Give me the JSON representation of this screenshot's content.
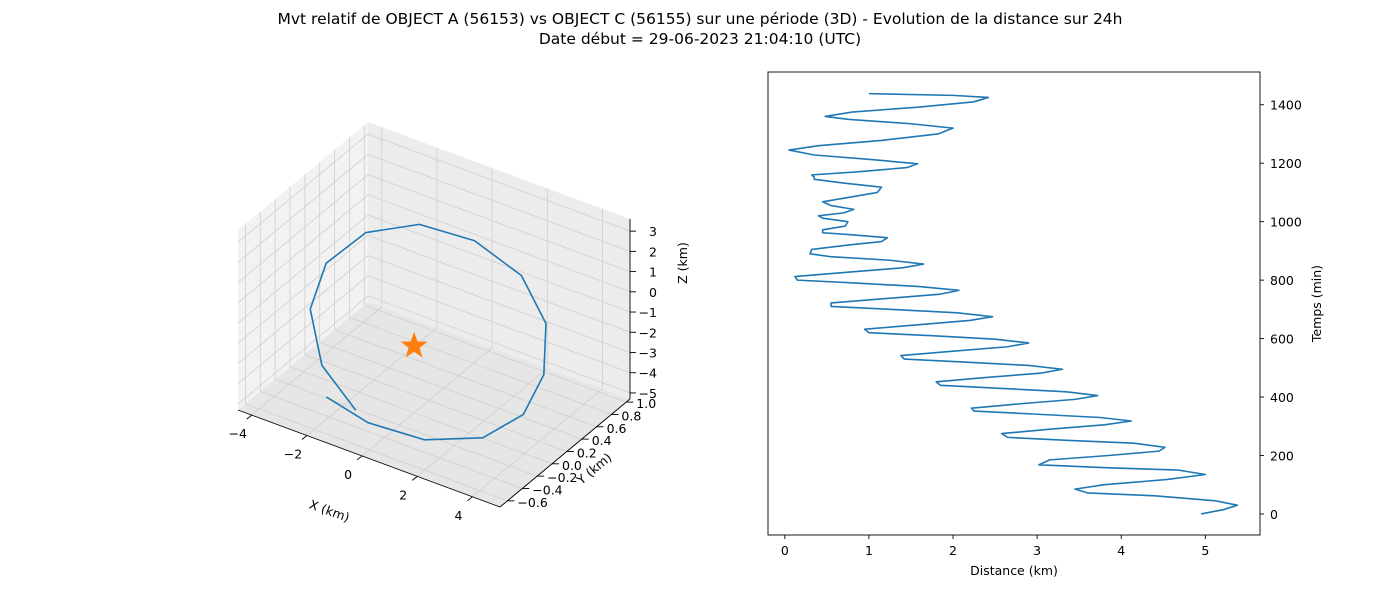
{
  "figure": {
    "title_line1": "Mvt relatif de OBJECT A (56153) vs OBJECT C (56155) sur une période (3D) - Evolution de la distance sur 24h",
    "title_line2": "Date début = 29-06-2023 21:04:10 (UTC)"
  },
  "chart_data": [
    {
      "type": "line",
      "projection": "3d",
      "xlabel": "X (km)",
      "ylabel": "Y (km)",
      "zlabel": "Z (km)",
      "xticks": [
        "−4",
        "−2",
        "0",
        "2",
        "4"
      ],
      "yticks": [
        "−0.6",
        "−0.4",
        "−0.2",
        "0.0",
        "0.2",
        "0.4",
        "0.6",
        "0.8",
        "1.0"
      ],
      "zticks": [
        "−5",
        "−4",
        "−3",
        "−2",
        "−1",
        "0",
        "1",
        "2",
        "3"
      ],
      "xlim": [
        -4.5,
        5.0
      ],
      "ylim": [
        -0.7,
        1.05
      ],
      "zlim": [
        -5.3,
        3.6
      ],
      "grid": true,
      "series": [
        {
          "color": "#1f77b4",
          "points": [
            [
              -0.5,
              -0.6,
              -3.6
            ],
            [
              -2.4,
              -0.35,
              -3.1
            ],
            [
              -3.9,
              0.05,
              -2.3
            ],
            [
              -4.4,
              0.45,
              -1.5
            ],
            [
              -3.9,
              0.8,
              -0.8
            ],
            [
              -2.5,
              1.0,
              -0.3
            ],
            [
              -0.5,
              1.0,
              -0.1
            ],
            [
              1.6,
              0.85,
              -0.3
            ],
            [
              3.3,
              0.55,
              -0.9
            ],
            [
              4.3,
              0.15,
              -1.7
            ],
            [
              4.5,
              -0.2,
              -2.5
            ],
            [
              3.7,
              -0.45,
              -3.3
            ],
            [
              2.0,
              -0.6,
              -3.8
            ],
            [
              0.0,
              -0.62,
              -3.9
            ],
            [
              -1.7,
              -0.55,
              -3.7
            ]
          ]
        },
        {
          "marker": "star",
          "color": "#ff7f0e",
          "points": [
            [
              0.0,
              0.0,
              -2.0
            ]
          ]
        }
      ]
    },
    {
      "type": "line",
      "xlabel": "Distance (km)",
      "ylabel": "Temps (min)",
      "xticks": [
        "0",
        "1",
        "2",
        "3",
        "4",
        "5"
      ],
      "yticks": [
        "0",
        "200",
        "400",
        "600",
        "800",
        "1000",
        "1200",
        "1400"
      ],
      "xlim": [
        -0.2,
        5.65
      ],
      "ylim": [
        -72,
        1512
      ],
      "series": [
        {
          "color": "#1f77b4",
          "x": [
            4.95,
            5.22,
            5.38,
            5.12,
            4.4,
            3.6,
            3.45,
            3.8,
            4.55,
            5.0,
            4.68,
            3.85,
            3.02,
            3.15,
            3.85,
            4.45,
            4.52,
            4.15,
            3.35,
            2.65,
            2.58,
            3.15,
            3.8,
            4.12,
            3.75,
            2.95,
            2.25,
            2.22,
            2.8,
            3.45,
            3.72,
            3.35,
            2.55,
            1.85,
            1.8,
            2.4,
            3.05,
            3.3,
            2.9,
            2.1,
            1.42,
            1.38,
            2.0,
            2.65,
            2.9,
            2.5,
            1.75,
            1.0,
            0.95,
            1.58,
            2.2,
            2.47,
            2.05,
            1.25,
            0.55,
            0.55,
            1.2,
            1.85,
            2.07,
            1.6,
            0.85,
            0.15,
            0.12,
            0.75,
            1.4,
            1.65,
            1.25,
            0.55,
            0.3,
            0.32,
            0.75,
            1.15,
            1.22,
            0.8,
            0.45,
            0.45,
            0.72,
            0.75,
            0.45,
            0.4,
            0.7,
            0.82,
            0.55,
            0.45,
            0.8,
            1.1,
            1.15,
            0.7,
            0.35,
            0.35,
            0.32,
            0.85,
            1.45,
            1.58,
            1.05,
            0.35,
            0.05,
            0.4,
            1.15,
            1.82,
            2.0,
            1.5,
            0.75,
            0.48,
            0.8,
            1.6,
            2.25,
            2.42,
            2.0,
            1.0
          ],
          "y": [
            0,
            15,
            30,
            45,
            62,
            72,
            85,
            100,
            118,
            135,
            150,
            158,
            168,
            185,
            200,
            215,
            228,
            242,
            252,
            262,
            275,
            290,
            305,
            318,
            330,
            342,
            352,
            362,
            377,
            392,
            405,
            418,
            430,
            440,
            452,
            467,
            482,
            495,
            508,
            520,
            530,
            542,
            557,
            572,
            585,
            598,
            610,
            620,
            632,
            647,
            662,
            675,
            688,
            700,
            710,
            722,
            737,
            752,
            765,
            778,
            790,
            800,
            812,
            827,
            842,
            855,
            868,
            880,
            890,
            905,
            920,
            932,
            945,
            955,
            962,
            972,
            985,
            1000,
            1012,
            1020,
            1030,
            1042,
            1055,
            1068,
            1085,
            1100,
            1118,
            1132,
            1145,
            1152,
            1160,
            1170,
            1185,
            1198,
            1212,
            1228,
            1245,
            1260,
            1278,
            1300,
            1320,
            1335,
            1350,
            1360,
            1375,
            1392,
            1410,
            1425,
            1432,
            1438
          ]
        }
      ]
    }
  ]
}
